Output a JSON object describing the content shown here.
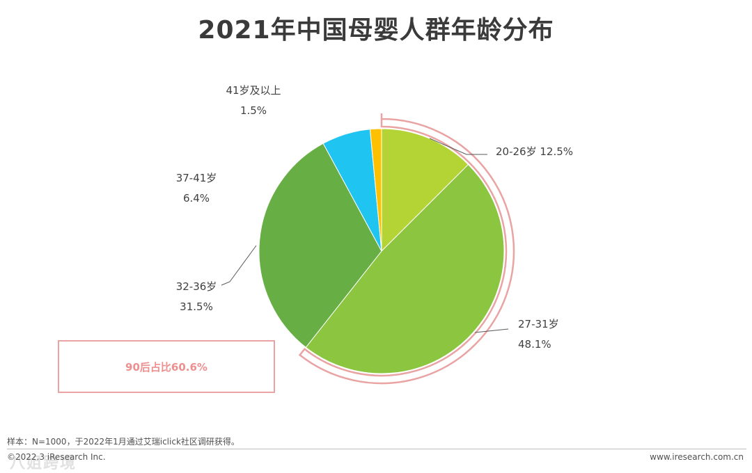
{
  "title": "2021年中国母婴人群年龄分布",
  "chart_data": {
    "type": "pie",
    "title": "2021年中国母婴人群年龄分布",
    "slices": [
      {
        "label": "20-26岁",
        "value": 12.5,
        "display": "12.5%",
        "color": "#b4d334"
      },
      {
        "label": "27-31岁",
        "value": 48.1,
        "display": "48.1%",
        "color": "#8cc540"
      },
      {
        "label": "32-36岁",
        "value": 31.5,
        "display": "31.5%",
        "color": "#67ae45"
      },
      {
        "label": "37-41岁",
        "value": 6.4,
        "display": "6.4%",
        "color": "#20c4f0"
      },
      {
        "label": "41岁及以上",
        "value": 1.5,
        "display": "1.5%",
        "color": "#ffc000"
      }
    ],
    "annotation": "90后占比60.6%",
    "highlight_color": "#e9a3a3"
  },
  "footer": {
    "note": "样本：N=1000，于2022年1月通过艾瑞iclick社区调研获得。",
    "copyright": "©2022.3 iResearch Inc.",
    "site": "www.iresearch.com.cn",
    "watermark": "八姐跨境"
  }
}
